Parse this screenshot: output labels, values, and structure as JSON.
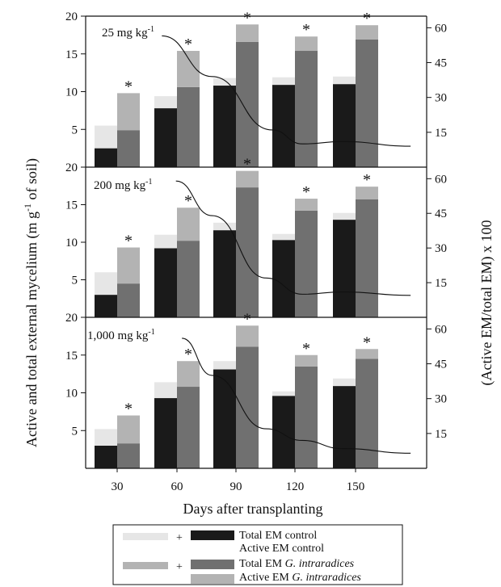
{
  "chart_data": {
    "type": "bar",
    "xlabel": "Days after transplanting",
    "ylabel_left": "Active and total external mycelium (m g",
    "ylabel_left_sup": "-1",
    "ylabel_left_end": " of soil)",
    "ylabel_right": "(Active EM/total EM) x 100",
    "categories": [
      "30",
      "60",
      "90",
      "120",
      "150"
    ],
    "left_ylim": [
      0,
      20
    ],
    "left_ticks": [
      "5",
      "10",
      "15",
      "20"
    ],
    "right_ylim": [
      0,
      65
    ],
    "right_ticks": [
      "15",
      "30",
      "45",
      "60"
    ],
    "significance_marker": "*",
    "legend": {
      "plus": "+",
      "items": [
        {
          "label": "Total EM control",
          "color": "#1a1a1a"
        },
        {
          "label": "Active EM control",
          "color": "#e6e6e6"
        },
        {
          "label": "Total EM ",
          "label_italic": "G. intraradices",
          "color": "#707070"
        },
        {
          "label": "Active EM ",
          "label_italic": "G. intraradices",
          "color": "#b3b3b3"
        }
      ]
    },
    "colors": {
      "total_control": "#1a1a1a",
      "active_control": "#e6e6e6",
      "total_gi": "#707070",
      "active_gi": "#b3b3b3"
    },
    "panels": [
      {
        "label": "25 mg kg",
        "label_sup": "-1",
        "series": [
          {
            "name": "Total EM control",
            "values": [
              2.5,
              7.8,
              10.8,
              10.9,
              11.0
            ]
          },
          {
            "name": "Active EM control",
            "values": [
              3.0,
              1.6,
              1.0,
              1.0,
              1.0
            ]
          },
          {
            "name": "Total EM G. intraradices",
            "values": [
              4.9,
              10.6,
              16.6,
              15.4,
              16.9
            ]
          },
          {
            "name": "Active EM G. intraradices",
            "values": [
              4.9,
              4.8,
              2.3,
              1.9,
              1.9
            ]
          }
        ],
        "ratio_line": [
          [
            38,
            56.5
          ],
          [
            63,
            39
          ],
          [
            93,
            16
          ],
          [
            108,
            10
          ],
          [
            128,
            11
          ],
          [
            162,
            9
          ]
        ]
      },
      {
        "label": "200 mg kg",
        "label_sup": "-1",
        "series": [
          {
            "name": "Total EM control",
            "values": [
              3.0,
              9.2,
              11.6,
              10.3,
              13.0
            ]
          },
          {
            "name": "Active EM control",
            "values": [
              3.0,
              1.8,
              1.0,
              0.8,
              0.9
            ]
          },
          {
            "name": "Total EM G. intraradices",
            "values": [
              4.5,
              10.2,
              17.3,
              14.2,
              15.7
            ]
          },
          {
            "name": "Active EM G. intraradices",
            "values": [
              4.8,
              4.4,
              2.2,
              1.6,
              1.7
            ]
          }
        ],
        "ratio_line": [
          [
            45,
            59
          ],
          [
            63,
            44
          ],
          [
            90,
            17
          ],
          [
            108,
            10
          ],
          [
            128,
            11
          ],
          [
            162,
            9.5
          ]
        ]
      },
      {
        "label": "1,000 mg kg",
        "label_sup": "-1",
        "series": [
          {
            "name": "Total EM control",
            "values": [
              3.0,
              9.3,
              13.1,
              9.6,
              10.9
            ]
          },
          {
            "name": "Active EM control",
            "values": [
              2.2,
              2.1,
              1.1,
              0.6,
              1.0
            ]
          },
          {
            "name": "Total EM G. intraradices",
            "values": [
              3.3,
              10.8,
              16.1,
              13.5,
              14.5
            ]
          },
          {
            "name": "Active EM G. intraradices",
            "values": [
              3.7,
              3.4,
              2.8,
              1.5,
              1.3
            ]
          }
        ],
        "ratio_line": [
          [
            48,
            56
          ],
          [
            63,
            40
          ],
          [
            90,
            17
          ],
          [
            108,
            12
          ],
          [
            128,
            8.5
          ],
          [
            162,
            6.5
          ]
        ]
      }
    ]
  }
}
